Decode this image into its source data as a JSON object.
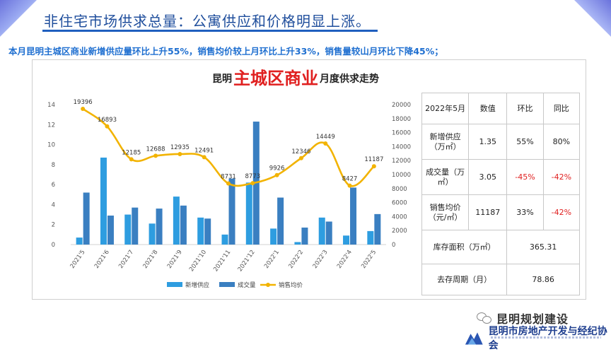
{
  "header": {
    "title": "非住宅市场供求总量：公寓供应和价格明显上涨。",
    "summary": "本月昆明主城区商业新增供应量环比上升55%，销售均价较上月环比上升33%，销售量较山月环比下降45%；"
  },
  "chart_title": {
    "prefix": "昆明",
    "highlight": "主城区商业",
    "suffix": "月度供求走势"
  },
  "colors": {
    "supply_bar": "#2e9de0",
    "deal_bar": "#3a7fc1",
    "price_line": "#f2b300",
    "title_blue": "#1f4e9c",
    "summary_blue": "#1f6fd0",
    "negative_red": "#e02020"
  },
  "chart_data": {
    "type": "bar",
    "title": "昆明主城区商业月度供求走势",
    "categories": [
      "2021'5",
      "2021'6",
      "2021'7",
      "2021'8",
      "2021'9",
      "2021'10",
      "2021'11",
      "2021'12",
      "2022'1",
      "2022'2",
      "2022'3",
      "2022'4",
      "2022'5"
    ],
    "series": [
      {
        "name": "新增供应",
        "type": "bar",
        "axis": "left",
        "values": [
          0.7,
          8.7,
          3.0,
          2.1,
          4.8,
          2.7,
          1.0,
          6.2,
          1.6,
          0.25,
          2.7,
          0.9,
          1.35
        ]
      },
      {
        "name": "成交量",
        "type": "bar",
        "axis": "left",
        "values": [
          5.2,
          2.9,
          3.7,
          3.6,
          3.9,
          2.6,
          6.6,
          12.3,
          4.7,
          1.7,
          2.3,
          5.7,
          3.05
        ]
      },
      {
        "name": "销售均价",
        "type": "line",
        "axis": "right",
        "values": [
          19396,
          16893,
          12185,
          12688,
          12935,
          12491,
          8731,
          8773,
          9926,
          12346,
          14449,
          8427,
          11187
        ],
        "labels": [
          "19396",
          "16893",
          "12185",
          "12688",
          "12935",
          "12491",
          "8731",
          "8773",
          "9926",
          "12346",
          "14449",
          "8427",
          "11187"
        ]
      }
    ],
    "left_axis": {
      "min": 0,
      "max": 14,
      "ticks": [
        "0",
        "2",
        "4",
        "6",
        "8",
        "10",
        "12",
        "14"
      ]
    },
    "right_axis": {
      "min": 0,
      "max": 20000,
      "ticks": [
        "0",
        "2000",
        "4000",
        "6000",
        "8000",
        "10000",
        "12000",
        "14000",
        "16000",
        "18000",
        "20000"
      ]
    },
    "grid": false,
    "legend_position": "bottom"
  },
  "stats_table": {
    "header": [
      "2022年5月",
      "数值",
      "环比",
      "同比"
    ],
    "rows": [
      {
        "label": "新增供应（万㎡）",
        "value": "1.35",
        "mom": "55%",
        "yoy": "80%",
        "mom_negative": false,
        "yoy_negative": false
      },
      {
        "label": "成交量（万㎡）",
        "value": "3.05",
        "mom": "-45%",
        "yoy": "-42%",
        "mom_negative": true,
        "yoy_negative": true
      },
      {
        "label": "销售均价（元/㎡）",
        "value": "11187",
        "mom": "33%",
        "yoy": "-42%",
        "mom_negative": false,
        "yoy_negative": true
      }
    ],
    "inventory": {
      "label": "库存面积（万㎡）",
      "value": "365.31"
    },
    "cycle": {
      "label": "去存周期（月）",
      "value": "78.86"
    }
  },
  "watermark": {
    "account": "昆明规划建设",
    "org": "昆明市房地产开发与经纪协会",
    "icon": "wechat-icon"
  }
}
